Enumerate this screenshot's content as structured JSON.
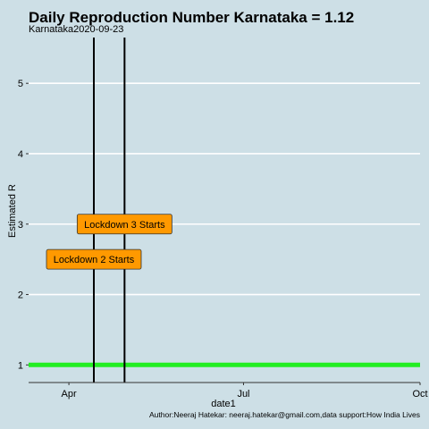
{
  "chart_data": {
    "type": "line",
    "title": "Daily Reproduction Number Karnataka = 1.12",
    "subtitle": "Karnataka2020-09-23",
    "xlabel": "date1",
    "ylabel": "Estimated R",
    "caption": "Author:Neeraj Hatekar: neeraj.hatekar@gmail.com,data support:How India Lives",
    "x_axis": {
      "type": "date",
      "range": [
        "2020-03-11",
        "2020-10-01"
      ],
      "ticks": [
        {
          "date": "2020-04-01",
          "label": "Apr"
        },
        {
          "date": "2020-07-01",
          "label": "Jul"
        },
        {
          "date": "2020-10-01",
          "label": "Oct"
        }
      ]
    },
    "y_axis": {
      "range": [
        0.75,
        5.65
      ],
      "ticks": [
        1,
        2,
        3,
        4,
        5
      ]
    },
    "grid": "horizontal",
    "series": [
      {
        "x": [
          "2020-03-11",
          "2020-10-01"
        ],
        "y": [
          1,
          1
        ],
        "color": "#22ee22"
      }
    ],
    "vlines": [
      {
        "date": "2020-04-14",
        "color": "#000000"
      },
      {
        "date": "2020-04-30",
        "color": "#000000"
      }
    ],
    "annotations": [
      {
        "text": "Lockdown 2 Starts",
        "x": "2020-04-14",
        "y": 2.5,
        "fill": "#ff9900"
      },
      {
        "text": "Lockdown 3 Starts",
        "x": "2020-04-30",
        "y": 3.0,
        "fill": "#ff9900"
      }
    ]
  }
}
